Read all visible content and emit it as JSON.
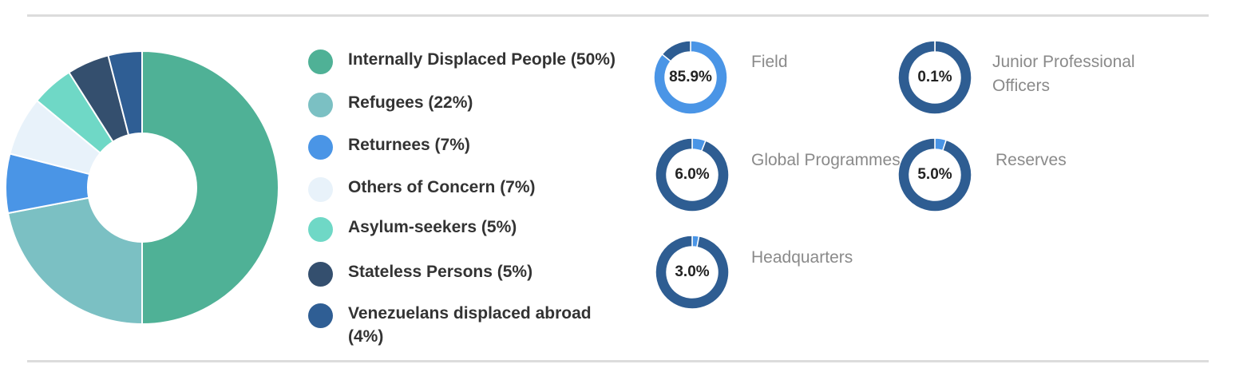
{
  "chart_data": [
    {
      "type": "pie",
      "donut": true,
      "series": [
        {
          "label": "Internally Displaced People (50%)",
          "value": 50,
          "color": "#4fb196"
        },
        {
          "label": "Refugees (22%)",
          "value": 22,
          "color": "#7bc0c3"
        },
        {
          "label": "Returnees (7%)",
          "value": 7,
          "color": "#4a95e6"
        },
        {
          "label": "Others of Concern (7%)",
          "value": 7,
          "color": "#e8f2fa"
        },
        {
          "label": "Asylum-seekers (5%)",
          "value": 5,
          "color": "#6fd8c6"
        },
        {
          "label": "Stateless Persons (5%)",
          "value": 5,
          "color": "#344f6e"
        },
        {
          "label": "Venezuelans displaced abroad (4%)",
          "value": 4,
          "color": "#2f5e94"
        }
      ]
    },
    {
      "type": "pie",
      "donut": true,
      "label": "Field",
      "value": 85.9,
      "value_text": "85.9%",
      "color": "#4a95e6",
      "rest_color": "#2e5d92"
    },
    {
      "type": "pie",
      "donut": true,
      "label": "Junior Professional Officers",
      "value": 0.1,
      "value_text": "0.1%",
      "color": "#4a95e6",
      "rest_color": "#2e5d92"
    },
    {
      "type": "pie",
      "donut": true,
      "label": "Global Programmes",
      "value": 6.0,
      "value_text": "6.0%",
      "color": "#4a95e6",
      "rest_color": "#2e5d92"
    },
    {
      "type": "pie",
      "donut": true,
      "label": "Reserves",
      "value": 5.0,
      "value_text": "5.0%",
      "color": "#4a95e6",
      "rest_color": "#2e5d92"
    },
    {
      "type": "pie",
      "donut": true,
      "label": "Headquarters",
      "value": 3.0,
      "value_text": "3.0%",
      "color": "#4a95e6",
      "rest_color": "#2e5d92"
    }
  ],
  "legend": {
    "items": [
      {
        "label": "Internally Displaced People (50%)",
        "color": "#4fb196"
      },
      {
        "label": "Refugees (22%)",
        "color": "#7bc0c3"
      },
      {
        "label": "Returnees (7%)",
        "color": "#4a95e6"
      },
      {
        "label": "Others of Concern (7%)",
        "color": "#e8f2fa"
      },
      {
        "label": "Asylum-seekers (5%)",
        "color": "#6fd8c6"
      },
      {
        "label": "Stateless Persons (5%)",
        "color": "#344f6e"
      },
      {
        "label": "Venezuelans displaced abroad (4%)",
        "color": "#2f5e94"
      }
    ]
  }
}
